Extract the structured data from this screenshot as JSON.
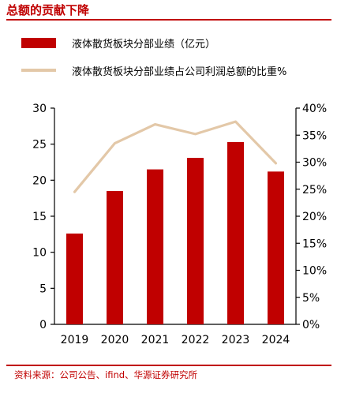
{
  "header": {
    "title": "总额的贡献下降"
  },
  "footer": {
    "source": "资料来源：公司公告、ifind、华源证券研究所"
  },
  "colors": {
    "accent": "#c00000",
    "bar": "#c00000",
    "line": "#e3c8a8",
    "axis": "#000000"
  },
  "chart_data": {
    "type": "bar",
    "categories": [
      "2019",
      "2020",
      "2021",
      "2022",
      "2023",
      "2024"
    ],
    "series": [
      {
        "name": "液体散货板块分部业绩（亿元）",
        "kind": "bar",
        "axis": "left",
        "values": [
          12.6,
          18.5,
          21.5,
          23.1,
          25.3,
          21.2
        ]
      },
      {
        "name": "液体散货板块分部业绩占公司利润总额的比重%",
        "kind": "line",
        "axis": "right",
        "values": [
          24.5,
          33.5,
          37.0,
          35.2,
          37.5,
          29.8
        ]
      }
    ],
    "y_left": {
      "min": 0,
      "max": 30,
      "ticks": [
        "0",
        "5",
        "10",
        "15",
        "20",
        "25",
        "30"
      ]
    },
    "y_right": {
      "min": 0,
      "max": 40,
      "ticks": [
        "0%",
        "5%",
        "10%",
        "15%",
        "20%",
        "25%",
        "30%",
        "35%",
        "40%"
      ]
    },
    "legend_position": "top-left",
    "grid": false
  }
}
